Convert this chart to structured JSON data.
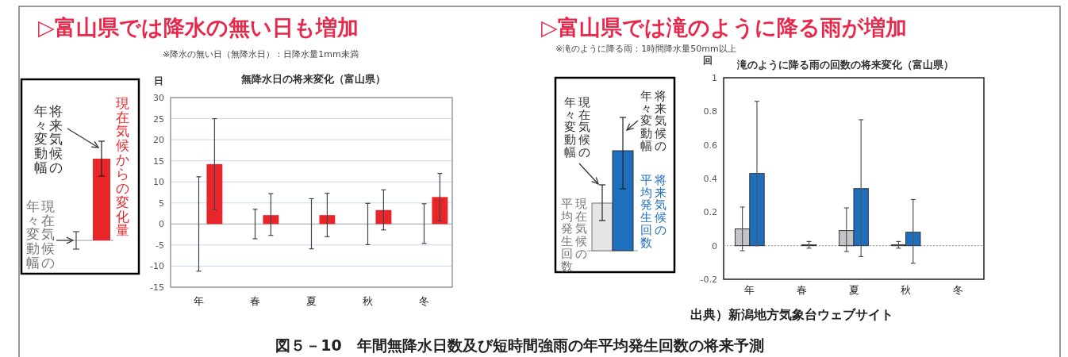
{
  "chart_data": [
    {
      "type": "bar",
      "title": "▷富山県では降水の無い日も増加",
      "subtitle": "無降水日の将来変化（富山県）",
      "ylabel": "日",
      "categories": [
        "年",
        "春",
        "夏",
        "秋",
        "冬"
      ],
      "series": [
        {
          "color": "#444444",
          "values": [
            0,
            0,
            0,
            0,
            0
          ],
          "errors": [
            [
              -11.2,
              11.2
            ],
            [
              -3.5,
              3.5
            ],
            [
              -5.9,
              6
            ],
            [
              -4.9,
              4.9
            ],
            [
              -4.6,
              4.8
            ]
          ]
        },
        {
          "color": "#e8262a",
          "values": [
            14.2,
            2.1,
            2.1,
            3.3,
            6.4
          ],
          "errors": [
            [
              3.4,
              25
            ],
            [
              -2.7,
              7.2
            ],
            [
              -3,
              7.3
            ],
            [
              -1.4,
              8.1
            ],
            [
              0.8,
              12
            ]
          ]
        }
      ],
      "ylim": [
        -15,
        30
      ],
      "yticks": [
        -15,
        -10,
        -5,
        0,
        5,
        10,
        15,
        20,
        25,
        30
      ],
      "grid": "y",
      "annotations": [
        "※降水の無い日（無降水日）：日降水量1mm未満",
        "将来気候の",
        "年々変動幅",
        "現在気候からの変化量",
        "現在気候の",
        "年々変動幅"
      ]
    },
    {
      "type": "bar",
      "title": "▷富山県では滝のように降る雨が増加",
      "subtitle": "滝のように降る雨の回数の将来変化（富山県）",
      "ylabel": "回",
      "categories": [
        "年",
        "春",
        "夏",
        "秋",
        "冬"
      ],
      "series": [
        {
          "color": "#c4c4c8",
          "values": [
            0.1,
            0,
            0.09,
            0.005,
            0
          ],
          "errors": [
            [
              -0.03,
              0.23
            ],
            null,
            [
              -0.035,
              0.225
            ],
            [
              -0.015,
              0.025
            ],
            null
          ]
        },
        {
          "color": "#1f6fbf",
          "values": [
            0.43,
            0.005,
            0.34,
            0.08,
            0
          ],
          "errors": [
            [
              0,
              0.86
            ],
            [
              -0.015,
              0.025
            ],
            [
              -0.065,
              0.75
            ],
            [
              -0.105,
              0.275
            ],
            null
          ]
        }
      ],
      "ylim": [
        -0.2,
        1
      ],
      "yticks": [
        -0.2,
        0,
        0.2,
        0.4,
        0.6,
        0.8,
        1
      ],
      "annotations": [
        "※滝のように降る雨：1時間降水量50mm以上",
        "現在気候の",
        "年々変動幅",
        "将来気候の",
        "年々変動幅",
        "現在気候の",
        "平均発生回数",
        "将来気候の",
        "平均発生回数",
        "出典）新潟地方気象台ウェブサイト",
        "図５－10　年間無降水日数及び短時間強雨の年平均発生回数の将来予測"
      ]
    }
  ]
}
